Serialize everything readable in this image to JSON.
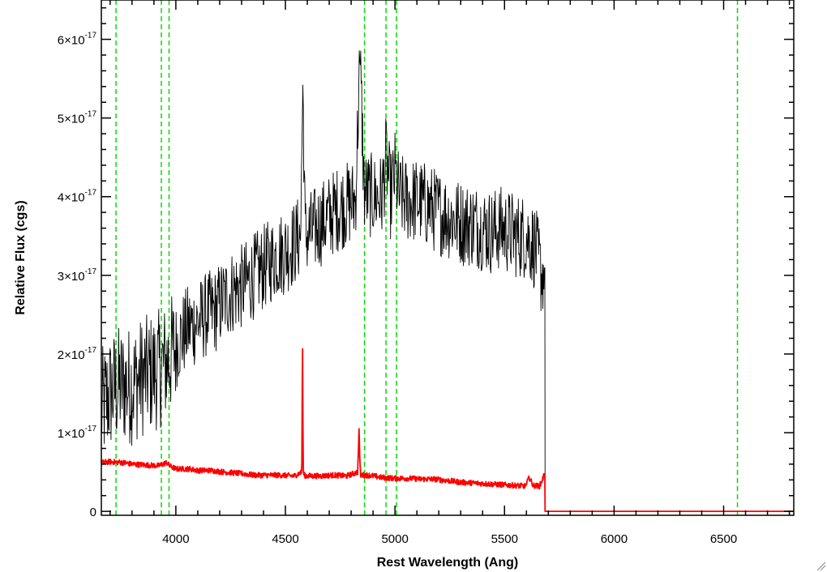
{
  "chart_data": {
    "type": "line",
    "title": "",
    "xlabel": "Rest Wavelength (Ang)",
    "ylabel": "Relative Flux (cgs)",
    "xlim": [
      3660,
      6820
    ],
    "ylim": [
      -5e-19,
      6.5e-17
    ],
    "x_ticks": [
      {
        "value": 4000,
        "label": "4000"
      },
      {
        "value": 4500,
        "label": "4500"
      },
      {
        "value": 5000,
        "label": "5000"
      },
      {
        "value": 5500,
        "label": "5500"
      },
      {
        "value": 6000,
        "label": "6000"
      },
      {
        "value": 6500,
        "label": "6500"
      }
    ],
    "y_ticks": [
      {
        "value": 0,
        "mantissa": "0",
        "exponent": ""
      },
      {
        "value": 1e-17,
        "mantissa": "1×10",
        "exponent": "-17"
      },
      {
        "value": 2e-17,
        "mantissa": "2×10",
        "exponent": "-17"
      },
      {
        "value": 3e-17,
        "mantissa": "3×10",
        "exponent": "-17"
      },
      {
        "value": 4e-17,
        "mantissa": "4×10",
        "exponent": "-17"
      },
      {
        "value": 5e-17,
        "mantissa": "5×10",
        "exponent": "-17"
      },
      {
        "value": 6e-17,
        "mantissa": "6×10",
        "exponent": "-17"
      }
    ],
    "x_minor_step": 100,
    "y_minor_step": 2e-18,
    "grid": false,
    "vertical_markers": {
      "color": "#00dd00",
      "style": "dashed",
      "x": [
        3727,
        3934,
        3969,
        4861,
        4959,
        5007,
        6563
      ]
    },
    "series": [
      {
        "color": "#000000",
        "x": [
          3660,
          3700,
          3740,
          3760,
          3800,
          3840,
          3880,
          3920,
          3960,
          3990,
          4020,
          4060,
          4100,
          4140,
          4180,
          4220,
          4260,
          4300,
          4340,
          4380,
          4420,
          4460,
          4500,
          4540,
          4570,
          4580,
          4590,
          4620,
          4660,
          4700,
          4740,
          4780,
          4820,
          4840,
          4860,
          4900,
          4940,
          4960,
          4980,
          5000,
          5020,
          5060,
          5100,
          5140,
          5170,
          5200,
          5240,
          5280,
          5320,
          5360,
          5400,
          5440,
          5480,
          5520,
          5560,
          5600,
          5640,
          5670,
          5684,
          5685,
          6820
        ],
        "y": [
          1.3e-17,
          1.5e-17,
          1.6e-17,
          1.6e-17,
          1.6e-17,
          1.7e-17,
          1.75e-17,
          1.8e-17,
          1.9e-17,
          2.05e-17,
          2.2e-17,
          2.35e-17,
          2.4e-17,
          2.5e-17,
          2.55e-17,
          2.7e-17,
          2.8e-17,
          2.85e-17,
          2.95e-17,
          3.05e-17,
          3.15e-17,
          3.25e-17,
          3.3e-17,
          3.4e-17,
          3.5e-17,
          5.5e-17,
          3.5e-17,
          3.55e-17,
          3.65e-17,
          3.75e-17,
          3.85e-17,
          3.9e-17,
          3.95e-17,
          5.8e-17,
          4.05e-17,
          4e-17,
          4e-17,
          4.5e-17,
          4e-17,
          4.3e-17,
          4e-17,
          3.95e-17,
          3.95e-17,
          3.9e-17,
          3.85e-17,
          3.8e-17,
          3.75e-17,
          3.7e-17,
          3.65e-17,
          3.65e-17,
          3.6e-17,
          3.55e-17,
          3.6e-17,
          3.55e-17,
          3.5e-17,
          3.5e-17,
          3.35e-17,
          3e-17,
          3.1e-17,
          0,
          0
        ]
      },
      {
        "color": "#ff0000",
        "x": [
          3660,
          3700,
          3760,
          3800,
          3860,
          3920,
          3960,
          3970,
          4000,
          4060,
          4100,
          4160,
          4220,
          4300,
          4360,
          4420,
          4480,
          4540,
          4575,
          4578,
          4581,
          4584,
          4600,
          4660,
          4720,
          4780,
          4830,
          4836,
          4840,
          4844,
          4880,
          4940,
          5000,
          5060,
          5120,
          5180,
          5240,
          5300,
          5360,
          5420,
          5480,
          5540,
          5600,
          5610,
          5630,
          5660,
          5684,
          5685,
          6820
        ],
        "y": [
          6.2e-18,
          6.3e-18,
          6.2e-18,
          6e-18,
          5.9e-18,
          5.8e-18,
          6.2e-18,
          5.8e-18,
          5.4e-18,
          5.4e-18,
          5.2e-18,
          5.2e-18,
          5e-18,
          4.8e-18,
          4.6e-18,
          4.6e-18,
          4.6e-18,
          4.5e-18,
          5e-18,
          2.3e-17,
          5.5e-18,
          4.6e-18,
          4.5e-18,
          4.5e-18,
          4.6e-18,
          4.5e-18,
          5e-18,
          1.05e-17,
          6e-18,
          4.6e-18,
          4.6e-18,
          4.3e-18,
          4.2e-18,
          4.2e-18,
          4.1e-18,
          4.1e-18,
          3.9e-18,
          3.7e-18,
          3.6e-18,
          3.5e-18,
          3.4e-18,
          3.3e-18,
          3.2e-18,
          4.5e-18,
          3.3e-18,
          3.2e-18,
          4.8e-18,
          0,
          0
        ]
      }
    ]
  }
}
